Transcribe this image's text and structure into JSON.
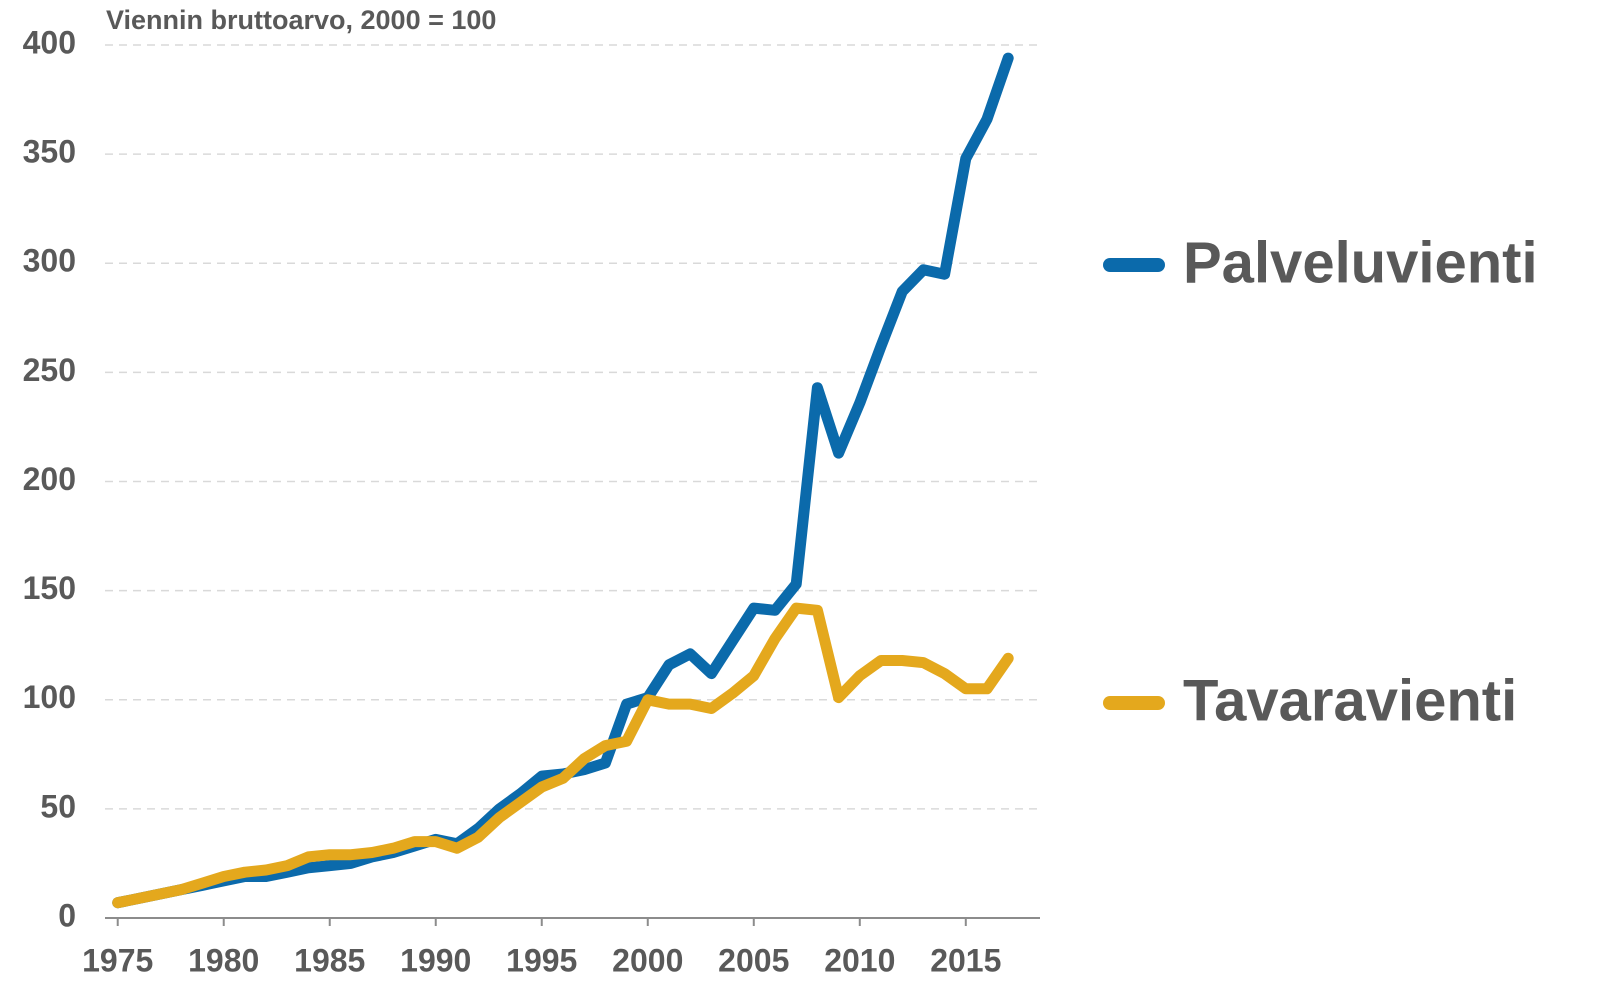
{
  "chart_data": {
    "type": "line",
    "subtitle": "Viennin bruttoarvo, 2000 = 100",
    "x": [
      1975,
      1976,
      1977,
      1978,
      1979,
      1980,
      1981,
      1982,
      1983,
      1984,
      1985,
      1986,
      1987,
      1988,
      1989,
      1990,
      1991,
      1992,
      1993,
      1994,
      1995,
      1996,
      1997,
      1998,
      1999,
      2000,
      2001,
      2002,
      2003,
      2004,
      2005,
      2006,
      2007,
      2008,
      2009,
      2010,
      2011,
      2012,
      2013,
      2014,
      2015,
      2016,
      2017
    ],
    "series": [
      {
        "name": "Palveluvienti",
        "color": "#0b6aab",
        "values": [
          7,
          9,
          11,
          13,
          15,
          17,
          19,
          19,
          21,
          23,
          24,
          25,
          28,
          30,
          33,
          36,
          34,
          41,
          50,
          57,
          65,
          66,
          68,
          71,
          98,
          101,
          116,
          121,
          112,
          127,
          142,
          141,
          153,
          243,
          213,
          236,
          262,
          287,
          297,
          295,
          348,
          366,
          394
        ]
      },
      {
        "name": "Tavaravienti",
        "color": "#e4a81d",
        "values": [
          7,
          9,
          11,
          13,
          16,
          19,
          21,
          22,
          24,
          28,
          29,
          29,
          30,
          32,
          35,
          35,
          32,
          37,
          46,
          53,
          60,
          64,
          73,
          79,
          81,
          100,
          98,
          98,
          96,
          103,
          111,
          128,
          142,
          141,
          101,
          111,
          118,
          118,
          117,
          112,
          105,
          105,
          119
        ]
      }
    ],
    "xlim": [
      1974.4,
      2018.5
    ],
    "xticks": [
      1975,
      1980,
      1985,
      1990,
      1995,
      2000,
      2005,
      2010,
      2015
    ],
    "ylim": [
      0,
      400
    ],
    "yticks": [
      0,
      50,
      100,
      150,
      200,
      250,
      300,
      350,
      400
    ],
    "grid": true,
    "legend": "right"
  }
}
